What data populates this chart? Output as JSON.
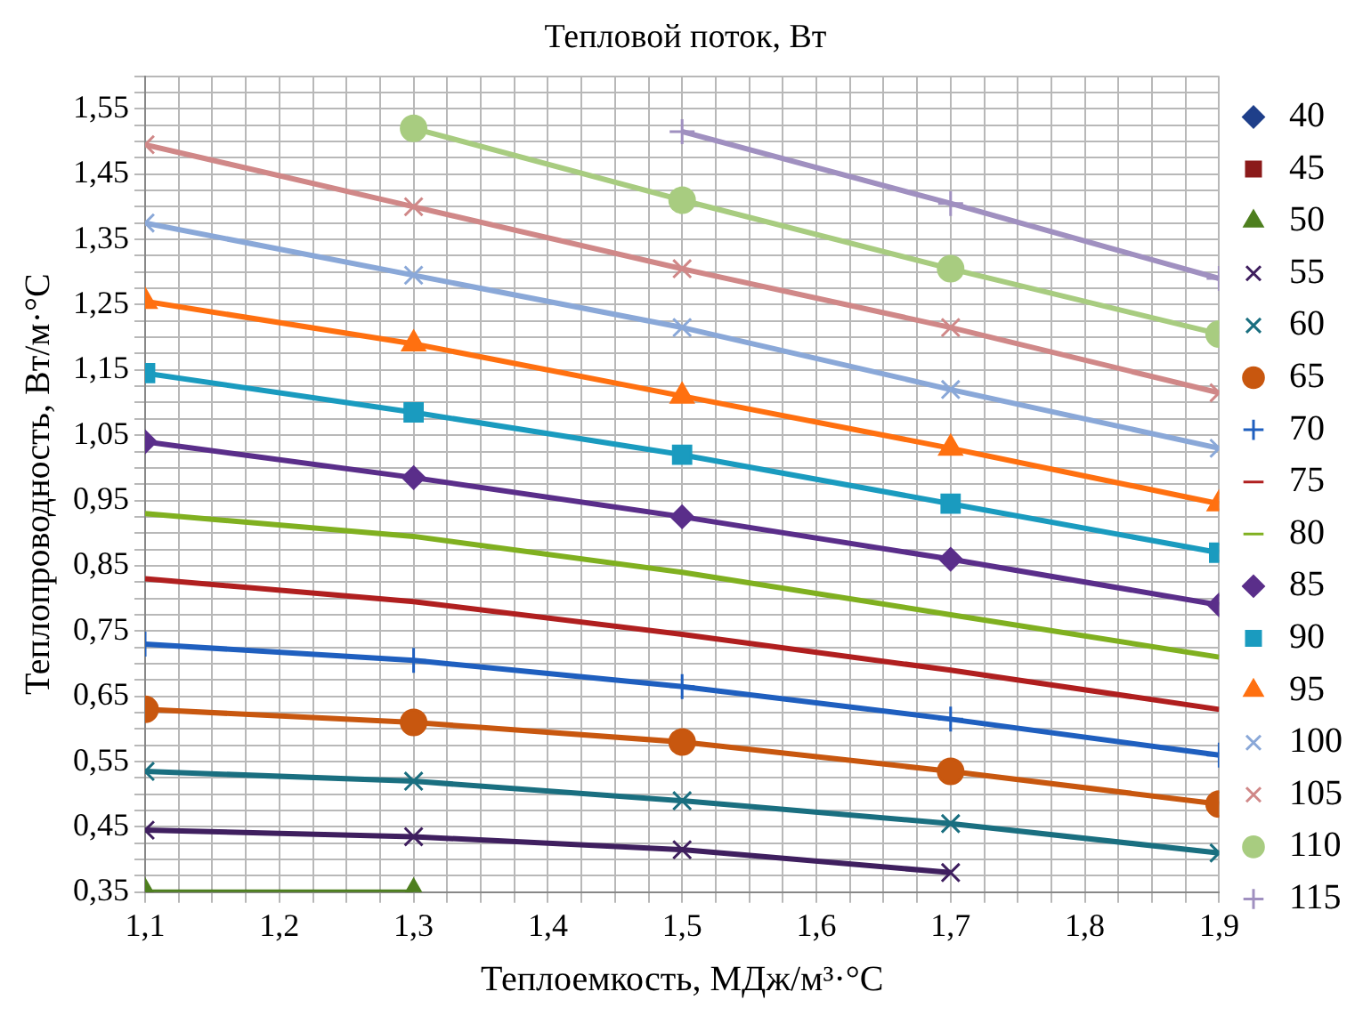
{
  "chart_data": {
    "type": "line",
    "title": "Тепловой поток, Вт",
    "xlabel": "Теплоемкость, МДж/м³·°С",
    "ylabel": "Теплопроводность, Вт/м·°С",
    "x": [
      1.1,
      1.3,
      1.5,
      1.7,
      1.9
    ],
    "xlim": [
      1.1,
      1.9
    ],
    "xticks": [
      {
        "value": 1.1,
        "label": "1,1"
      },
      {
        "value": 1.125,
        "label": null
      },
      {
        "value": 1.15,
        "label": null
      },
      {
        "value": 1.175,
        "label": null
      },
      {
        "value": 1.2,
        "label": "1,2"
      },
      {
        "value": 1.225,
        "label": null
      },
      {
        "value": 1.25,
        "label": null
      },
      {
        "value": 1.275,
        "label": null
      },
      {
        "value": 1.3,
        "label": "1,3"
      },
      {
        "value": 1.325,
        "label": null
      },
      {
        "value": 1.35,
        "label": null
      },
      {
        "value": 1.375,
        "label": null
      },
      {
        "value": 1.4,
        "label": "1,4"
      },
      {
        "value": 1.425,
        "label": null
      },
      {
        "value": 1.45,
        "label": null
      },
      {
        "value": 1.475,
        "label": null
      },
      {
        "value": 1.5,
        "label": "1,5"
      },
      {
        "value": 1.525,
        "label": null
      },
      {
        "value": 1.55,
        "label": null
      },
      {
        "value": 1.575,
        "label": null
      },
      {
        "value": 1.6,
        "label": "1,6"
      },
      {
        "value": 1.625,
        "label": null
      },
      {
        "value": 1.65,
        "label": null
      },
      {
        "value": 1.675,
        "label": null
      },
      {
        "value": 1.7,
        "label": "1,7"
      },
      {
        "value": 1.725,
        "label": null
      },
      {
        "value": 1.75,
        "label": null
      },
      {
        "value": 1.775,
        "label": null
      },
      {
        "value": 1.8,
        "label": "1,8"
      },
      {
        "value": 1.825,
        "label": null
      },
      {
        "value": 1.85,
        "label": null
      },
      {
        "value": 1.875,
        "label": null
      },
      {
        "value": 1.9,
        "label": "1,9"
      }
    ],
    "ylim": [
      0.35,
      1.6
    ],
    "yticks": [
      {
        "value": 0.35,
        "label": "0,35"
      },
      {
        "value": 0.375,
        "label": null
      },
      {
        "value": 0.4,
        "label": null
      },
      {
        "value": 0.425,
        "label": null
      },
      {
        "value": 0.45,
        "label": "0,45"
      },
      {
        "value": 0.475,
        "label": null
      },
      {
        "value": 0.5,
        "label": null
      },
      {
        "value": 0.525,
        "label": null
      },
      {
        "value": 0.55,
        "label": "0,55"
      },
      {
        "value": 0.575,
        "label": null
      },
      {
        "value": 0.6,
        "label": null
      },
      {
        "value": 0.625,
        "label": null
      },
      {
        "value": 0.65,
        "label": "0,65"
      },
      {
        "value": 0.675,
        "label": null
      },
      {
        "value": 0.7,
        "label": null
      },
      {
        "value": 0.725,
        "label": null
      },
      {
        "value": 0.75,
        "label": "0,75"
      },
      {
        "value": 0.775,
        "label": null
      },
      {
        "value": 0.8,
        "label": null
      },
      {
        "value": 0.825,
        "label": null
      },
      {
        "value": 0.85,
        "label": "0,85"
      },
      {
        "value": 0.875,
        "label": null
      },
      {
        "value": 0.9,
        "label": null
      },
      {
        "value": 0.925,
        "label": null
      },
      {
        "value": 0.95,
        "label": "0,95"
      },
      {
        "value": 0.975,
        "label": null
      },
      {
        "value": 1.0,
        "label": null
      },
      {
        "value": 1.025,
        "label": null
      },
      {
        "value": 1.05,
        "label": "1,05"
      },
      {
        "value": 1.075,
        "label": null
      },
      {
        "value": 1.1,
        "label": null
      },
      {
        "value": 1.125,
        "label": null
      },
      {
        "value": 1.15,
        "label": "1,15"
      },
      {
        "value": 1.175,
        "label": null
      },
      {
        "value": 1.2,
        "label": null
      },
      {
        "value": 1.225,
        "label": null
      },
      {
        "value": 1.25,
        "label": "1,25"
      },
      {
        "value": 1.275,
        "label": null
      },
      {
        "value": 1.3,
        "label": null
      },
      {
        "value": 1.325,
        "label": null
      },
      {
        "value": 1.35,
        "label": "1,35"
      },
      {
        "value": 1.375,
        "label": null
      },
      {
        "value": 1.4,
        "label": null
      },
      {
        "value": 1.425,
        "label": null
      },
      {
        "value": 1.45,
        "label": "1,45"
      },
      {
        "value": 1.475,
        "label": null
      },
      {
        "value": 1.5,
        "label": null
      },
      {
        "value": 1.525,
        "label": null
      },
      {
        "value": 1.55,
        "label": "1,55"
      },
      {
        "value": 1.575,
        "label": null
      },
      {
        "value": 1.6,
        "label": null
      }
    ],
    "grid": true,
    "legend": "right",
    "line_style": "solid",
    "series": [
      {
        "name": "40",
        "color": "#1f3f8a",
        "marker": "diamond",
        "values": [
          null,
          null,
          null,
          null,
          null
        ]
      },
      {
        "name": "45",
        "color": "#8b1a1a",
        "marker": "square",
        "values": [
          null,
          null,
          null,
          null,
          null
        ]
      },
      {
        "name": "50",
        "color": "#4e7f1f",
        "marker": "triangle",
        "values": [
          0.35,
          0.35,
          null,
          null,
          null
        ]
      },
      {
        "name": "55",
        "color": "#3f1f5f",
        "marker": "cross",
        "values": [
          0.445,
          0.435,
          0.415,
          0.38,
          null
        ]
      },
      {
        "name": "60",
        "color": "#1a6f80",
        "marker": "cross",
        "values": [
          0.535,
          0.52,
          0.49,
          0.455,
          0.41
        ]
      },
      {
        "name": "65",
        "color": "#c8570f",
        "marker": "circle",
        "values": [
          0.63,
          0.61,
          0.58,
          0.535,
          0.485
        ]
      },
      {
        "name": "70",
        "color": "#1f5fbf",
        "marker": "plus",
        "values": [
          0.73,
          0.705,
          0.665,
          0.615,
          0.56
        ]
      },
      {
        "name": "75",
        "color": "#b01f1f",
        "marker": "none",
        "values": [
          0.83,
          0.795,
          0.745,
          0.69,
          0.63
        ]
      },
      {
        "name": "80",
        "color": "#80b020",
        "marker": "none",
        "values": [
          0.93,
          0.895,
          0.84,
          0.775,
          0.71
        ]
      },
      {
        "name": "85",
        "color": "#5a2e8a",
        "marker": "diamond",
        "values": [
          1.04,
          0.985,
          0.925,
          0.86,
          0.79
        ]
      },
      {
        "name": "90",
        "color": "#1a9bbf",
        "marker": "square",
        "values": [
          1.145,
          1.085,
          1.02,
          0.945,
          0.87
        ]
      },
      {
        "name": "95",
        "color": "#ff7010",
        "marker": "triangle",
        "values": [
          1.255,
          1.19,
          1.11,
          1.03,
          0.945
        ]
      },
      {
        "name": "100",
        "color": "#8aa8d8",
        "marker": "cross",
        "values": [
          1.375,
          1.295,
          1.215,
          1.12,
          1.03
        ]
      },
      {
        "name": "105",
        "color": "#d08888",
        "marker": "cross",
        "values": [
          1.495,
          1.4,
          1.305,
          1.215,
          1.115
        ]
      },
      {
        "name": "110",
        "color": "#a8cc80",
        "marker": "circle",
        "values": [
          null,
          1.52,
          1.41,
          1.305,
          1.205
        ]
      },
      {
        "name": "115",
        "color": "#a090c0",
        "marker": "plus",
        "values": [
          null,
          null,
          1.515,
          1.405,
          1.29
        ]
      }
    ]
  }
}
